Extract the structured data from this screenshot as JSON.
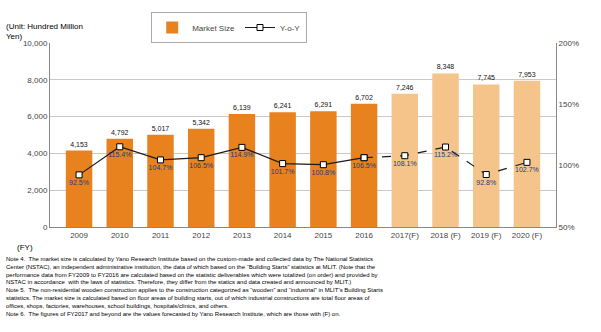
{
  "chart_data": {
    "type": "bar",
    "categories": [
      "2009",
      "2010",
      "2011",
      "2012",
      "2013",
      "2014",
      "2015",
      "2016",
      "2017(F)",
      "2018 (F)",
      "2019 (F)",
      "2020 (F)"
    ],
    "series": [
      {
        "name": "Market Size",
        "type": "bar",
        "values": [
          4153,
          4792,
          5017,
          5342,
          6139,
          6241,
          6291,
          6702,
          7246,
          8348,
          7745,
          7953
        ],
        "value_labels": [
          "4,153",
          "4,792",
          "5,017",
          "5,342",
          "6,139",
          "6,241",
          "6,291",
          "6,702",
          "7,246",
          "8,348",
          "7,745",
          "7,953"
        ],
        "colors": [
          "#E8821E",
          "#E8821E",
          "#E8821E",
          "#E8821E",
          "#E8821E",
          "#E8821E",
          "#E8821E",
          "#E8821E",
          "#F5C48A",
          "#F5C48A",
          "#F5C48A",
          "#F5C48A"
        ]
      },
      {
        "name": "Y-o-Y",
        "type": "line",
        "axis": "y2",
        "values": [
          92.5,
          115.4,
          104.7,
          106.5,
          114.9,
          101.7,
          100.8,
          106.5,
          108.1,
          115.2,
          92.8,
          102.7
        ],
        "value_labels": [
          "92.5%",
          "115.4%",
          "104.7%",
          "106.5%",
          "114.9%",
          "101.7%",
          "100.8%",
          "106.5%",
          "108.1%",
          "115.2%",
          "92.8%",
          "102.7%"
        ],
        "color": "#1a1a1a",
        "marker": "square",
        "line_style": "solid"
      }
    ],
    "ylim": [
      0,
      10000
    ],
    "yticks": [
      0,
      {
        "value": 2000,
        "label": "2,000"
      },
      {
        "value": 4000,
        "label": "4,000"
      },
      {
        "value": 6000,
        "label": "6,000"
      },
      {
        "value": 8000,
        "label": "8,000"
      },
      {
        "value": 10000,
        "label": "10,000"
      }
    ],
    "y2lim": [
      50,
      200
    ],
    "y2ticks": [
      {
        "value": 50,
        "label": "50%"
      },
      {
        "value": 100,
        "label": "100%"
      },
      {
        "value": 150,
        "label": "150%"
      },
      {
        "value": 200,
        "label": "200%"
      }
    ],
    "x_label": "(FY)",
    "y_label": "(Unit: Hundred Million\nYen)",
    "annotations": [
      "Note 4.  The market size is calculated by Yano Research Institute based on the custom-made and collected data by The National Statistics\nCenter (NSTAC), an independent administrative institution, the data of which based on the “Building Starts” statistics at MLIT. (Note that the\nperformance data from FY2009 to FY2016 are calculated based on the statistic deliverables which were totalized (on order) and provided by\nNSTAC in accordance  with the laws of statistics. Therefore, they differ from the statics and data created and announced by MLIT.)\nNote 5.  The non-residential wooden construction applies to the construction categorized as “wooden” and “industrial” in MLIT’s Building Starts\nstatistics. The market size is calculated based on floor areas of building starts, out of which industrial constructions are total floor areas of\noffices, shops, factories, warehouses, school buildings, hospitals/clinics, and others.\nNote 6.  The figures of FY2017 and beyond are the values forecasted by Yano Research Institute, which are those with (F) on."
    ],
    "grid": true,
    "data_labels": true,
    "legend": "top"
  }
}
